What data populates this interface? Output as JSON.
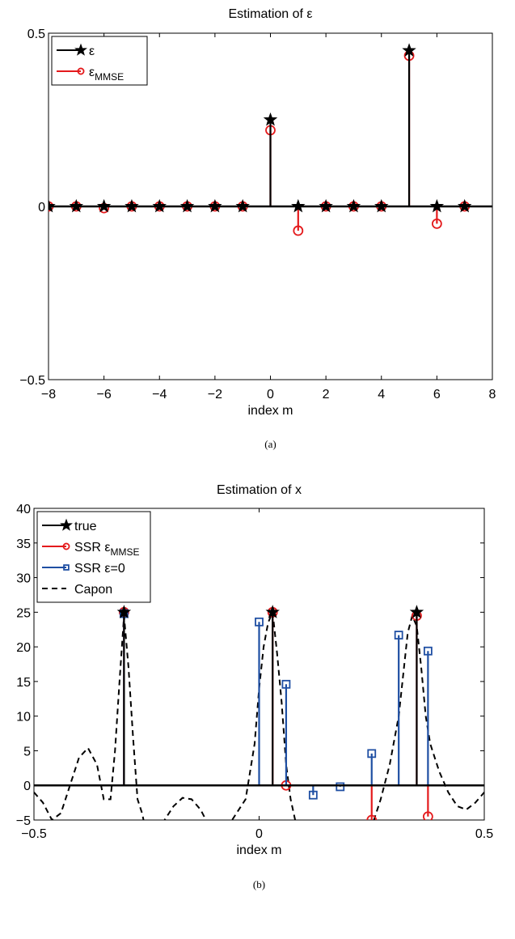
{
  "chart_data": [
    {
      "type": "stem",
      "title": "Estimation of ε",
      "xlabel": "index m",
      "ylabel": "",
      "xlim": [
        -8,
        8
      ],
      "ylim": [
        -0.5,
        0.5
      ],
      "xticks": [
        "−8",
        "−6",
        "−4",
        "−2",
        "0",
        "2",
        "4",
        "6",
        "8"
      ],
      "yticks": [
        "−0.5",
        "0",
        "0.5"
      ],
      "legend_position": "top-left",
      "caption": "(a)",
      "series": [
        {
          "name": "ε",
          "color": "#000000",
          "marker": "star",
          "x": [
            -8,
            -7,
            -6,
            -5,
            -4,
            -3,
            -2,
            -1,
            0,
            1,
            2,
            3,
            4,
            5,
            6,
            7
          ],
          "y": [
            0,
            0,
            0,
            0,
            0,
            0,
            0,
            0,
            0.25,
            0,
            0,
            0,
            0,
            0.45,
            0,
            0
          ]
        },
        {
          "name": "ε",
          "name_sub": "MMSE",
          "color": "#e41a1c",
          "marker": "circle",
          "x": [
            -8,
            -7,
            -6,
            -5,
            -4,
            -3,
            -2,
            -1,
            0,
            1,
            2,
            3,
            4,
            5,
            6,
            7
          ],
          "y": [
            0,
            0,
            -0.005,
            0,
            0,
            0,
            0,
            0,
            0.22,
            -0.07,
            0,
            0,
            0,
            0.435,
            -0.05,
            0
          ]
        }
      ]
    },
    {
      "type": "stem",
      "title": "Estimation of x",
      "xlabel": "index m",
      "ylabel": "",
      "xlim": [
        -0.5,
        0.5
      ],
      "ylim": [
        -5,
        40
      ],
      "xticks": [
        "−0.5",
        "0",
        "0.5"
      ],
      "yticks": [
        "−5",
        "0",
        "5",
        "10",
        "15",
        "20",
        "25",
        "30",
        "35",
        "40"
      ],
      "legend_position": "top-left",
      "caption": "(b)",
      "series": [
        {
          "name": "true",
          "color": "#000000",
          "marker": "star",
          "x": [
            -0.3,
            0.03,
            0.35
          ],
          "y": [
            25,
            25,
            25
          ]
        },
        {
          "name": "SSR ε",
          "name_sub": "MMSE",
          "color": "#e41a1c",
          "marker": "circle",
          "x": [
            -0.3,
            0.03,
            0.06,
            0.25,
            0.35,
            0.375
          ],
          "y": [
            25,
            25,
            0,
            -5,
            24.5,
            -4.5
          ]
        },
        {
          "name": "SSR ε=0",
          "color": "#1f4fa3",
          "marker": "square",
          "x": [
            -0.3,
            0.0,
            0.06,
            0.12,
            0.18,
            0.25,
            0.31,
            0.375
          ],
          "y": [
            24.8,
            23.6,
            14.6,
            -1.4,
            -0.2,
            4.6,
            21.7,
            19.4
          ]
        },
        {
          "name": "Capon",
          "color": "#000000",
          "line_style": "dashed",
          "x": [
            -0.5,
            -0.48,
            -0.46,
            -0.44,
            -0.42,
            -0.4,
            -0.38,
            -0.36,
            -0.345,
            -0.33,
            -0.32,
            -0.31,
            -0.3,
            -0.29,
            -0.28,
            -0.27,
            -0.26,
            -0.25,
            -0.23,
            -0.21,
            -0.19,
            -0.17,
            -0.15,
            -0.13,
            -0.11,
            -0.09,
            -0.07,
            -0.05,
            -0.03,
            -0.01,
            0.0,
            0.01,
            0.02,
            0.03,
            0.04,
            0.05,
            0.06,
            0.07,
            0.08,
            0.09,
            0.1,
            0.2,
            0.25,
            0.27,
            0.29,
            0.31,
            0.32,
            0.33,
            0.34,
            0.35,
            0.36,
            0.37,
            0.38,
            0.4,
            0.42,
            0.44,
            0.46,
            0.48,
            0.5
          ],
          "y": [
            -1,
            -2.5,
            -5,
            -4,
            0,
            4,
            5.4,
            3,
            -2,
            -2,
            5,
            15,
            24.5,
            17,
            7,
            -2,
            -4,
            -7,
            -7,
            -5,
            -3,
            -1.8,
            -2,
            -3.5,
            -6,
            -7,
            -6,
            -4,
            -2,
            6,
            14,
            20,
            23.5,
            25,
            19,
            12,
            3,
            -2,
            -5,
            -6,
            -7,
            -7,
            -6,
            -2,
            3,
            10,
            16,
            22,
            24.5,
            23,
            17,
            10,
            6,
            2,
            -1,
            -3,
            -3.5,
            -2.5,
            -1
          ]
        }
      ]
    }
  ]
}
